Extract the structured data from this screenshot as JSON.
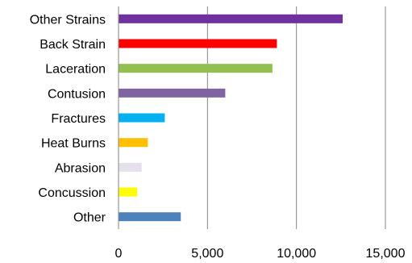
{
  "chart_data": {
    "type": "bar",
    "orientation": "horizontal",
    "categories": [
      "Other Strains",
      "Back Strain",
      "Laceration",
      "Contusion",
      "Fractures",
      "Heat Burns",
      "Abrasion",
      "Concussion",
      "Other"
    ],
    "values": [
      12600,
      8900,
      8650,
      6000,
      2600,
      1650,
      1300,
      1050,
      3500
    ],
    "colors": [
      "#7030A0",
      "#FF0000",
      "#92C050",
      "#8064A2",
      "#00B0F0",
      "#FFC000",
      "#E6E0EC",
      "#FFFF00",
      "#4F81BD"
    ],
    "xlim": [
      0,
      15000
    ],
    "ticks": [
      0,
      5000,
      10000,
      15000
    ],
    "tick_labels": [
      "0",
      "5,000",
      "10,000",
      "15,000"
    ],
    "grid": "vertical",
    "legend": "none",
    "title": "",
    "xlabel": "",
    "ylabel": ""
  }
}
